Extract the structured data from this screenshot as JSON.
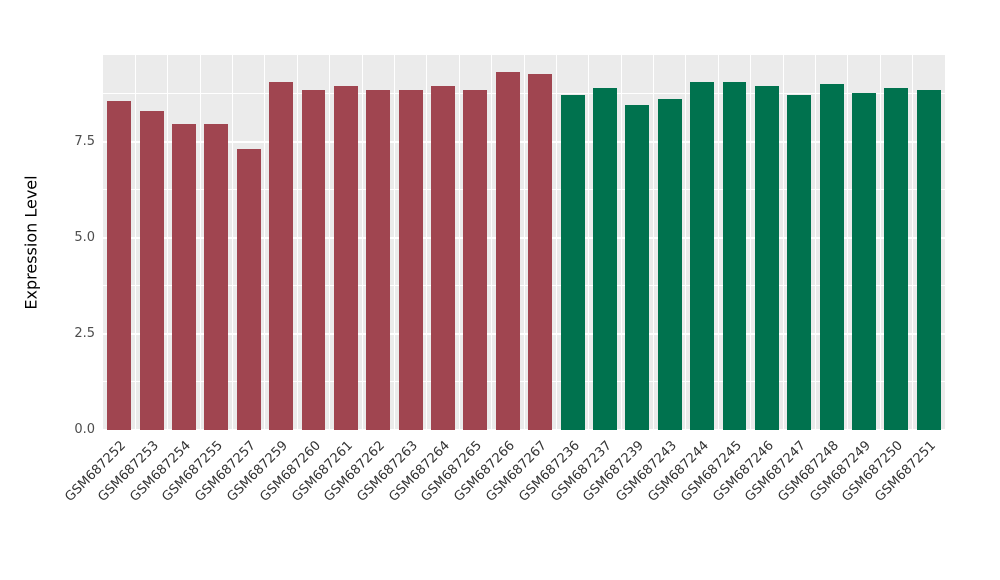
{
  "chart_data": {
    "type": "bar",
    "title": "",
    "xlabel": "",
    "ylabel": "Expression Level",
    "ylim": [
      0,
      9.75
    ],
    "ytick_values": [
      0,
      2.5,
      5.0,
      7.5
    ],
    "ytick_labels": [
      "0.0",
      "2.5",
      "5.0",
      "7.5"
    ],
    "minor_gridlines": [
      1.25,
      3.75,
      6.25,
      8.75
    ],
    "grid_on": true,
    "legend_position": "none",
    "panel_bg": "#EBEBEB",
    "grid_color": "#FFFFFF",
    "axis_text_color": "#4D4D4D",
    "categories": [
      "GSM687252",
      "GSM687253",
      "GSM687254",
      "GSM687255",
      "GSM687257",
      "GSM687259",
      "GSM687260",
      "GSM687261",
      "GSM687262",
      "GSM687263",
      "GSM687264",
      "GSM687265",
      "GSM687266",
      "GSM687267",
      "GSM687236",
      "GSM687237",
      "GSM687239",
      "GSM687243",
      "GSM687244",
      "GSM687245",
      "GSM687246",
      "GSM687247",
      "GSM687248",
      "GSM687249",
      "GSM687250",
      "GSM687251"
    ],
    "values": [
      8.55,
      8.3,
      7.95,
      7.95,
      7.3,
      9.05,
      8.85,
      8.95,
      8.85,
      8.85,
      8.95,
      8.85,
      9.3,
      9.25,
      8.7,
      8.9,
      8.45,
      8.6,
      9.05,
      9.05,
      8.95,
      8.7,
      9.0,
      8.75,
      8.9,
      8.85
    ],
    "groups": [
      "group1",
      "group1",
      "group1",
      "group1",
      "group1",
      "group1",
      "group1",
      "group1",
      "group1",
      "group1",
      "group1",
      "group1",
      "group1",
      "group1",
      "group2",
      "group2",
      "group2",
      "group2",
      "group2",
      "group2",
      "group2",
      "group2",
      "group2",
      "group2",
      "group2",
      "group2"
    ],
    "group_colors": {
      "group1": "#A04550",
      "group2": "#00724E"
    }
  }
}
